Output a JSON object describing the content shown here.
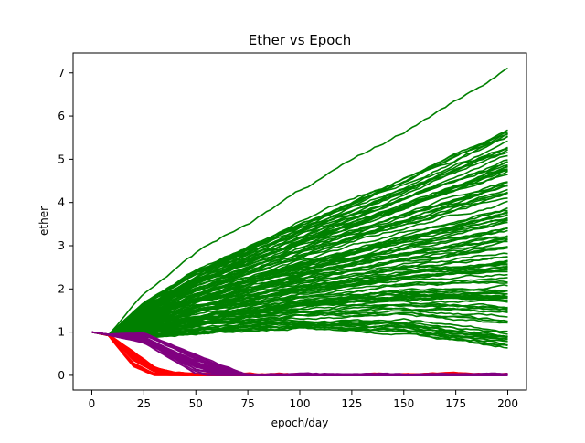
{
  "chart_data": {
    "type": "line",
    "title": "Ether vs Epoch",
    "xlabel": "epoch/day",
    "ylabel": "ether",
    "xlim": [
      -9,
      209
    ],
    "ylim": [
      -0.34,
      7.46
    ],
    "xticks": [
      0,
      25,
      50,
      75,
      100,
      125,
      150,
      175,
      200
    ],
    "yticks": [
      0,
      1,
      2,
      3,
      4,
      5,
      6,
      7
    ],
    "grid": false,
    "legend": "none",
    "colors": {
      "green": "#008000",
      "purple": "#800080",
      "red": "#ff0000"
    },
    "series": [
      {
        "group": "green",
        "color": "#008000",
        "count": 120,
        "x": [
          0,
          8,
          25,
          50,
          100,
          150,
          200
        ],
        "y_min": [
          1.0,
          0.92,
          0.9,
          0.98,
          1.07,
          1.0,
          0.65
        ],
        "y_max": [
          1.0,
          0.93,
          1.9,
          2.8,
          4.25,
          5.6,
          7.1
        ],
        "y_band": [
          1.0,
          0.93,
          1.42,
          1.88,
          2.55,
          3.2,
          3.8
        ]
      },
      {
        "group": "purple",
        "color": "#800080",
        "count": 35,
        "x": [
          0,
          8,
          25,
          50,
          60,
          75,
          200
        ],
        "y_min": [
          1.0,
          0.93,
          0.75,
          0.05,
          0.0,
          0.0,
          0.0
        ],
        "y_max": [
          1.0,
          0.95,
          0.98,
          0.45,
          0.25,
          0.0,
          0.0
        ]
      },
      {
        "group": "red",
        "color": "#ff0000",
        "count": 30,
        "x": [
          0,
          8,
          20,
          30,
          40,
          52,
          200
        ],
        "y_min": [
          1.0,
          0.92,
          0.2,
          0.0,
          0.0,
          0.0,
          0.0
        ],
        "y_max": [
          1.0,
          0.95,
          0.55,
          0.2,
          0.05,
          0.0,
          0.0
        ]
      }
    ]
  }
}
